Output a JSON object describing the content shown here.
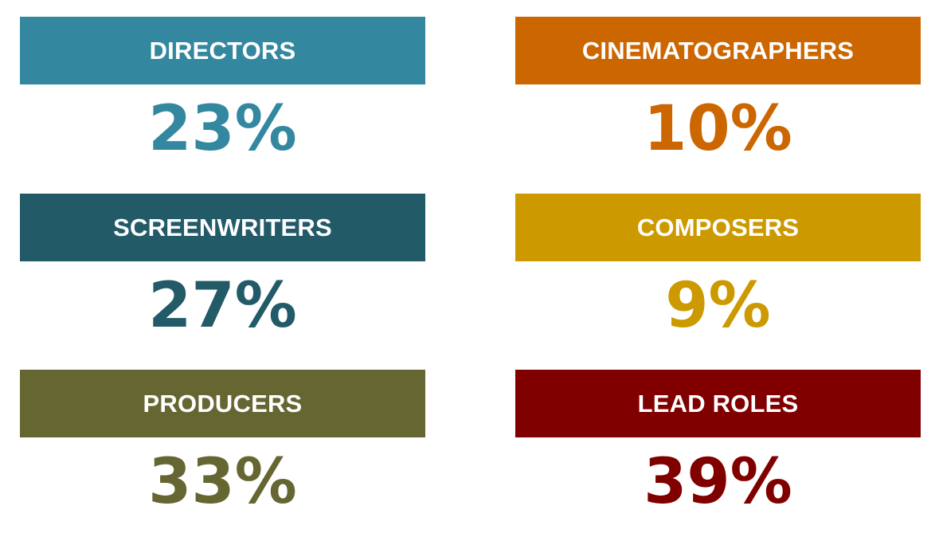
{
  "cards": [
    {
      "label": "DIRECTORS",
      "value": "23%",
      "color": "#3388a0"
    },
    {
      "label": "CINEMATOGRAPHERS",
      "value": "10%",
      "color": "#cc6600"
    },
    {
      "label": "SCREENWRITERS",
      "value": "27%",
      "color": "#235a68"
    },
    {
      "label": "COMPOSERS",
      "value": "9%",
      "color": "#cc9900"
    },
    {
      "label": "PRODUCERS",
      "value": "33%",
      "color": "#666633"
    },
    {
      "label": "LEAD ROLES",
      "value": "39%",
      "color": "#800000"
    }
  ]
}
